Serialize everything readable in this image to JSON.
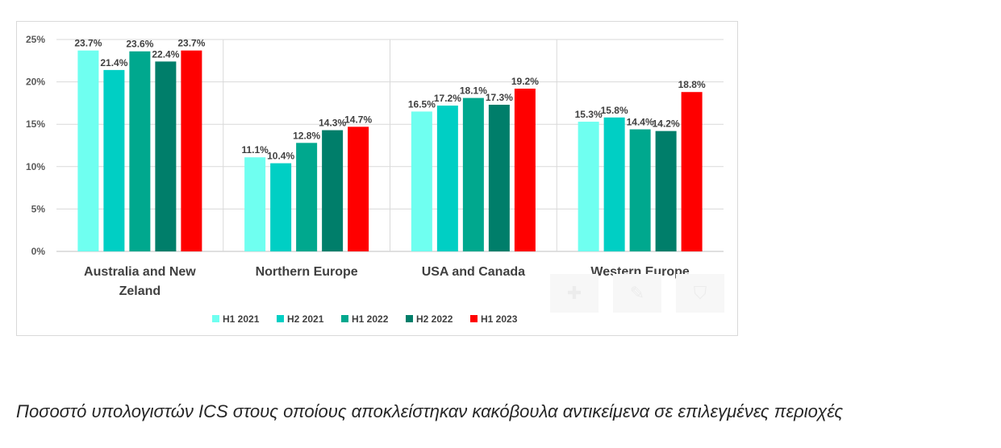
{
  "chart_data": {
    "type": "bar",
    "categories": [
      [
        "Australia and New",
        "Zeland"
      ],
      [
        "Northern Europe"
      ],
      [
        "USA and Canada"
      ],
      [
        "Western Europe"
      ]
    ],
    "series": [
      {
        "name": "H1 2021",
        "color": "#6ffff0",
        "values": [
          23.7,
          11.1,
          16.5,
          15.3
        ]
      },
      {
        "name": "H2 2021",
        "color": "#00cfc4",
        "values": [
          21.4,
          10.4,
          17.2,
          15.8
        ]
      },
      {
        "name": "H1 2022",
        "color": "#00a88e",
        "values": [
          23.6,
          12.8,
          18.1,
          14.4
        ]
      },
      {
        "name": "H2 2022",
        "color": "#007e6a",
        "values": [
          22.4,
          14.3,
          17.3,
          14.2
        ]
      },
      {
        "name": "H1 2023",
        "color": "#ff0000",
        "values": [
          23.7,
          14.7,
          19.2,
          18.8
        ]
      }
    ],
    "yticks": [
      0,
      5,
      10,
      15,
      20,
      25
    ],
    "ylim": [
      0,
      25
    ],
    "value_suffix": "%",
    "grid": true,
    "legend_position": "bottom"
  },
  "toolbar_icons": [
    "plus-icon",
    "brush-icon",
    "filter-icon"
  ],
  "caption": "Ποσοστό υπολογιστών ICS στους οποίους αποκλείστηκαν κακόβουλα αντικείμενα σε επιλεγμένες περιοχές"
}
